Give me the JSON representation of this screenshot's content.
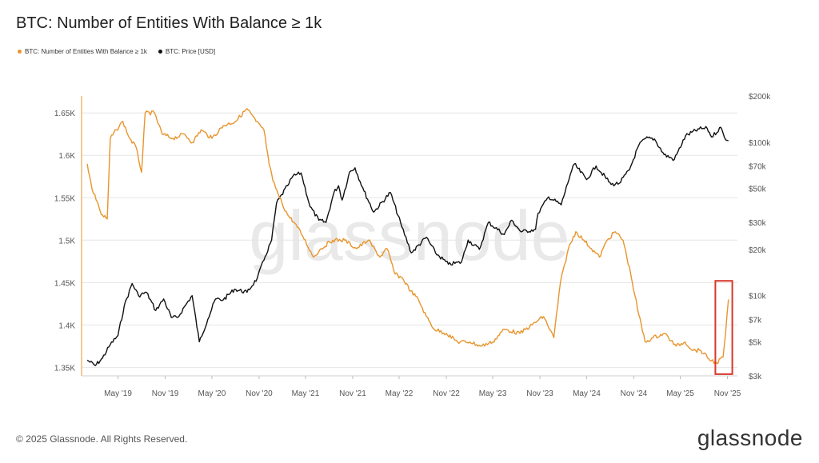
{
  "header": {
    "title": "BTC: Number of Entities With Balance ≥ 1k"
  },
  "legend": [
    {
      "label": "BTC: Number of Entities With Balance ≥ 1k",
      "color": "#e8952c"
    },
    {
      "label": "BTC: Price [USD]",
      "color": "#111111"
    }
  ],
  "footer": {
    "copyright": "© 2025 Glassnode. All Rights Reserved.",
    "brand": "glassnode"
  },
  "watermark": "glassnode",
  "colors": {
    "entities": "#e8952c",
    "price": "#111111",
    "highlight": "#d9362b",
    "grid": "#e6e6e6"
  },
  "chart_data": {
    "type": "line",
    "title": "BTC: Number of Entities With Balance ≥ 1k",
    "x_ticks": [
      "May '19",
      "Nov '19",
      "May '20",
      "Nov '20",
      "May '21",
      "Nov '21",
      "May '22",
      "Nov '22",
      "May '23",
      "Nov '23",
      "May '24",
      "Nov '24",
      "May '25",
      "Nov '25"
    ],
    "y_left": {
      "ticks": [
        1.35,
        1.4,
        1.45,
        1.5,
        1.55,
        1.6,
        1.65
      ],
      "tick_labels": [
        "1.35K",
        "1.4K",
        "1.45K",
        "1.5K",
        "1.55K",
        "1.6K",
        "1.65K"
      ],
      "range": [
        1.34,
        1.67
      ],
      "unit": "K"
    },
    "y_right": {
      "scale": "log",
      "ticks": [
        3000,
        5000,
        7000,
        10000,
        20000,
        30000,
        50000,
        70000,
        100000,
        200000
      ],
      "tick_labels": [
        "$3k",
        "$5k",
        "$7k",
        "$10k",
        "$20k",
        "$30k",
        "$50k",
        "$70k",
        "$100k",
        "$200k"
      ],
      "range": [
        3000,
        200000
      ]
    },
    "grid": "horizontal",
    "legend_position": "top-left",
    "annotation": {
      "type": "highlight-box",
      "color": "#d9362b",
      "x_range": [
        "2025-09-15",
        "2025-11-20"
      ]
    },
    "series": [
      {
        "name": "BTC: Number of Entities With Balance ≥ 1k",
        "axis": "left",
        "color": "#e8952c",
        "points": [
          [
            "2019-01-01",
            1.59
          ],
          [
            "2019-01-20",
            1.56
          ],
          [
            "2019-02-10",
            1.545
          ],
          [
            "2019-02-25",
            1.53
          ],
          [
            "2019-03-20",
            1.525
          ],
          [
            "2019-04-01",
            1.62
          ],
          [
            "2019-04-25",
            1.63
          ],
          [
            "2019-05-20",
            1.64
          ],
          [
            "2019-06-15",
            1.62
          ],
          [
            "2019-07-10",
            1.61
          ],
          [
            "2019-08-01",
            1.58
          ],
          [
            "2019-08-15",
            1.65
          ],
          [
            "2019-09-20",
            1.65
          ],
          [
            "2019-10-20",
            1.625
          ],
          [
            "2019-12-01",
            1.62
          ],
          [
            "2020-01-15",
            1.625
          ],
          [
            "2020-02-15",
            1.615
          ],
          [
            "2020-03-20",
            1.63
          ],
          [
            "2020-05-01",
            1.62
          ],
          [
            "2020-06-15",
            1.635
          ],
          [
            "2020-08-01",
            1.64
          ],
          [
            "2020-09-15",
            1.655
          ],
          [
            "2020-10-20",
            1.64
          ],
          [
            "2020-11-20",
            1.63
          ],
          [
            "2020-12-10",
            1.59
          ],
          [
            "2020-12-25",
            1.57
          ],
          [
            "2021-01-20",
            1.55
          ],
          [
            "2021-02-20",
            1.53
          ],
          [
            "2021-03-20",
            1.52
          ],
          [
            "2021-04-20",
            1.505
          ],
          [
            "2021-06-01",
            1.48
          ],
          [
            "2021-07-01",
            1.49
          ],
          [
            "2021-08-15",
            1.5
          ],
          [
            "2021-10-01",
            1.5
          ],
          [
            "2021-11-15",
            1.49
          ],
          [
            "2022-01-01",
            1.5
          ],
          [
            "2022-02-15",
            1.48
          ],
          [
            "2022-03-15",
            1.49
          ],
          [
            "2022-04-15",
            1.46
          ],
          [
            "2022-05-15",
            1.455
          ],
          [
            "2022-06-15",
            1.44
          ],
          [
            "2022-07-15",
            1.43
          ],
          [
            "2022-08-15",
            1.41
          ],
          [
            "2022-09-15",
            1.395
          ],
          [
            "2022-11-01",
            1.39
          ],
          [
            "2022-12-15",
            1.38
          ],
          [
            "2023-02-01",
            1.38
          ],
          [
            "2023-03-15",
            1.375
          ],
          [
            "2023-05-01",
            1.38
          ],
          [
            "2023-06-15",
            1.395
          ],
          [
            "2023-08-15",
            1.39
          ],
          [
            "2023-10-01",
            1.4
          ],
          [
            "2023-11-15",
            1.41
          ],
          [
            "2023-12-25",
            1.385
          ],
          [
            "2024-01-20",
            1.45
          ],
          [
            "2024-02-20",
            1.49
          ],
          [
            "2024-03-20",
            1.51
          ],
          [
            "2024-04-20",
            1.5
          ],
          [
            "2024-05-20",
            1.49
          ],
          [
            "2024-06-20",
            1.48
          ],
          [
            "2024-07-20",
            1.5
          ],
          [
            "2024-08-20",
            1.51
          ],
          [
            "2024-09-20",
            1.5
          ],
          [
            "2024-10-20",
            1.46
          ],
          [
            "2024-11-15",
            1.42
          ],
          [
            "2024-12-15",
            1.38
          ],
          [
            "2025-01-15",
            1.385
          ],
          [
            "2025-03-01",
            1.39
          ],
          [
            "2025-04-15",
            1.375
          ],
          [
            "2025-05-20",
            1.38
          ],
          [
            "2025-06-20",
            1.37
          ],
          [
            "2025-07-20",
            1.37
          ],
          [
            "2025-08-20",
            1.36
          ],
          [
            "2025-09-20",
            1.355
          ],
          [
            "2025-10-15",
            1.362
          ],
          [
            "2025-10-25",
            1.39
          ],
          [
            "2025-11-05",
            1.43
          ]
        ]
      },
      {
        "name": "BTC: Price [USD]",
        "axis": "right",
        "color": "#111111",
        "points": [
          [
            "2019-01-01",
            3800
          ],
          [
            "2019-02-01",
            3500
          ],
          [
            "2019-03-01",
            3900
          ],
          [
            "2019-04-01",
            4800
          ],
          [
            "2019-05-01",
            5500
          ],
          [
            "2019-05-25",
            8500
          ],
          [
            "2019-06-25",
            12000
          ],
          [
            "2019-07-20",
            10000
          ],
          [
            "2019-08-20",
            10500
          ],
          [
            "2019-09-25",
            8000
          ],
          [
            "2019-10-26",
            9500
          ],
          [
            "2019-11-25",
            7200
          ],
          [
            "2019-12-20",
            7200
          ],
          [
            "2020-01-20",
            8700
          ],
          [
            "2020-02-14",
            10000
          ],
          [
            "2020-03-13",
            5000
          ],
          [
            "2020-04-15",
            7000
          ],
          [
            "2020-05-15",
            9500
          ],
          [
            "2020-06-15",
            9400
          ],
          [
            "2020-07-28",
            11000
          ],
          [
            "2020-09-15",
            10500
          ],
          [
            "2020-10-25",
            13000
          ],
          [
            "2020-11-25",
            18000
          ],
          [
            "2020-12-20",
            23000
          ],
          [
            "2021-01-08",
            40000
          ],
          [
            "2021-02-20",
            52000
          ],
          [
            "2021-03-13",
            60000
          ],
          [
            "2021-04-14",
            63000
          ],
          [
            "2021-05-19",
            38000
          ],
          [
            "2021-06-22",
            31000
          ],
          [
            "2021-07-20",
            30000
          ],
          [
            "2021-08-20",
            47000
          ],
          [
            "2021-09-07",
            52000
          ],
          [
            "2021-09-21",
            42000
          ],
          [
            "2021-10-20",
            64000
          ],
          [
            "2021-11-10",
            68000
          ],
          [
            "2021-12-15",
            48000
          ],
          [
            "2022-01-22",
            35000
          ],
          [
            "2022-03-28",
            47000
          ],
          [
            "2022-05-12",
            28000
          ],
          [
            "2022-06-18",
            19000
          ],
          [
            "2022-08-15",
            24000
          ],
          [
            "2022-09-20",
            19000
          ],
          [
            "2022-11-09",
            16000
          ],
          [
            "2022-12-30",
            16500
          ],
          [
            "2023-01-25",
            23000
          ],
          [
            "2023-03-10",
            20000
          ],
          [
            "2023-04-14",
            30000
          ],
          [
            "2023-06-15",
            25000
          ],
          [
            "2023-07-14",
            31000
          ],
          [
            "2023-08-20",
            26000
          ],
          [
            "2023-10-15",
            27000
          ],
          [
            "2023-10-25",
            34500
          ],
          [
            "2023-12-05",
            44000
          ],
          [
            "2024-01-23",
            39000
          ],
          [
            "2024-02-28",
            62000
          ],
          [
            "2024-03-14",
            72000
          ],
          [
            "2024-05-01",
            57000
          ],
          [
            "2024-06-07",
            70000
          ],
          [
            "2024-08-05",
            53000
          ],
          [
            "2024-09-06",
            54000
          ],
          [
            "2024-10-15",
            66000
          ],
          [
            "2024-11-20",
            95000
          ],
          [
            "2024-12-17",
            106000
          ],
          [
            "2025-01-20",
            105000
          ],
          [
            "2025-02-27",
            83000
          ],
          [
            "2025-04-08",
            77000
          ],
          [
            "2025-05-22",
            110000
          ],
          [
            "2025-07-14",
            122000
          ],
          [
            "2025-08-14",
            123000
          ],
          [
            "2025-09-01",
            108000
          ],
          [
            "2025-10-06",
            125000
          ],
          [
            "2025-10-20",
            108000
          ],
          [
            "2025-11-05",
            102000
          ]
        ]
      }
    ]
  }
}
